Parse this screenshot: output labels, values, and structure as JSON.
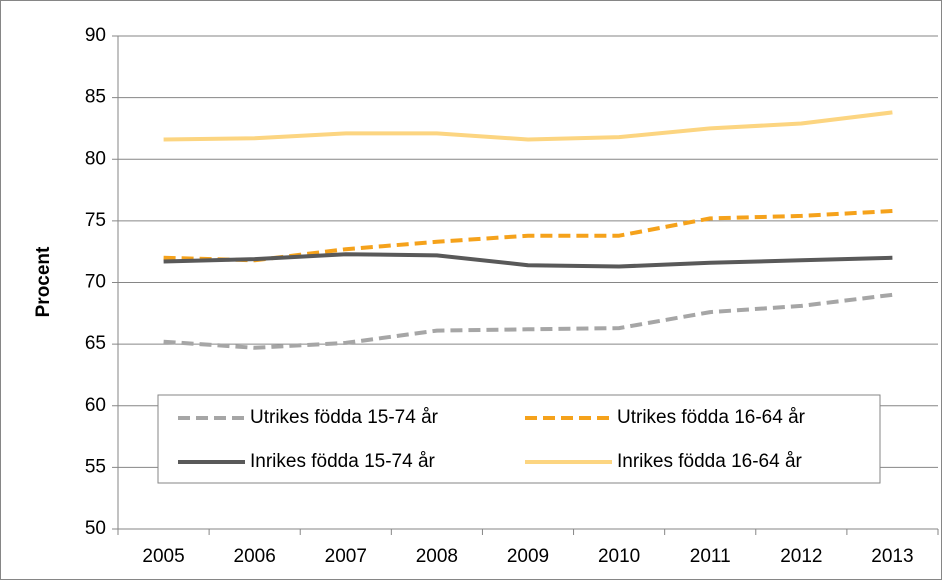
{
  "chart_data": {
    "type": "line",
    "y_label": "Procent",
    "categories": [
      "2005",
      "2006",
      "2007",
      "2008",
      "2009",
      "2010",
      "2011",
      "2012",
      "2013"
    ],
    "series": [
      {
        "name": "Utrikes födda 15-74 år",
        "color": "#a6a6a6",
        "dashed": true,
        "values": [
          65.2,
          64.7,
          65.1,
          66.1,
          66.2,
          66.3,
          67.6,
          68.1,
          69.0
        ]
      },
      {
        "name": "Utrikes födda 16-64 år",
        "color": "#f5a21b",
        "dashed": true,
        "values": [
          72.0,
          71.8,
          72.7,
          73.3,
          73.8,
          73.8,
          75.2,
          75.4,
          75.8
        ]
      },
      {
        "name": "Inrikes födda 15-74 år",
        "color": "#595959",
        "dashed": false,
        "values": [
          71.7,
          71.9,
          72.3,
          72.2,
          71.4,
          71.3,
          71.6,
          71.8,
          72.0
        ]
      },
      {
        "name": "Inrikes födda 16-64 år",
        "color": "#fcd581",
        "dashed": false,
        "values": [
          81.6,
          81.7,
          82.1,
          82.1,
          81.6,
          81.8,
          82.5,
          82.9,
          83.8
        ]
      }
    ],
    "ylim": [
      50,
      90
    ],
    "yticks": [
      50,
      55,
      60,
      65,
      70,
      75,
      80,
      85,
      90
    ],
    "grid": true
  }
}
